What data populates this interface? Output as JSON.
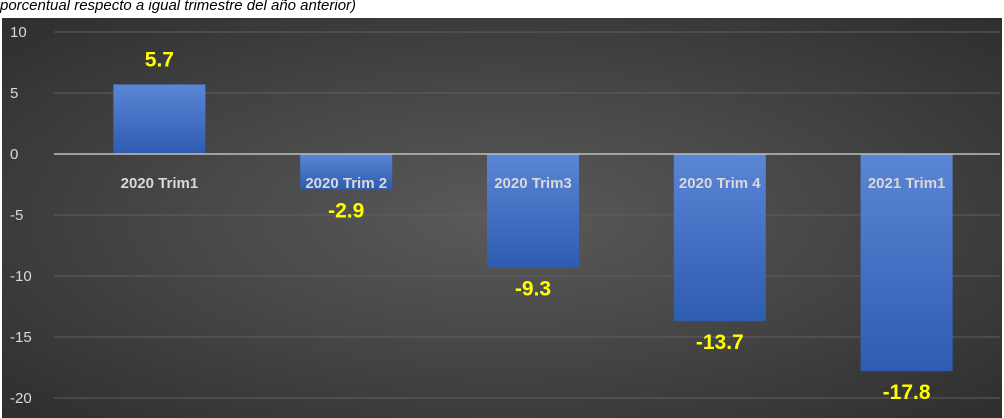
{
  "caption": "porcentual respecto a igual trimestre del año anterior)",
  "chart_data": {
    "type": "bar",
    "categories": [
      "2020 Trim1",
      "2020 Trim 2",
      "2020 Trim3",
      "2020 Trim 4",
      "2021 Trim1"
    ],
    "values": [
      5.7,
      -2.9,
      -9.3,
      -13.7,
      -17.8
    ],
    "data_labels": [
      "5.7",
      "-2.9",
      "-9.3",
      "-13.7",
      "-17.8"
    ],
    "yticks": [
      "10",
      "5",
      "0",
      "-5",
      "-10",
      "-15",
      "-20"
    ],
    "ylim": [
      -20,
      10
    ],
    "grid": true,
    "colors": {
      "bar_top": "#5b86d6",
      "bar_bottom": "#2e5cb0",
      "data_label": "#ffff00",
      "axis_text": "#d9d9d9",
      "gridline": "#5f5f5f",
      "zero_line": "#bfbfbf"
    }
  }
}
